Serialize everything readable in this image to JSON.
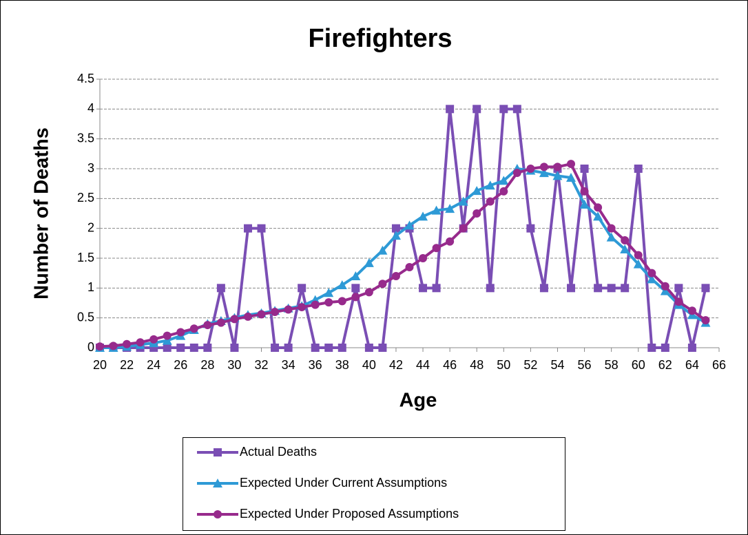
{
  "chart_data": {
    "type": "line",
    "title": "Firefighters",
    "x_label": "Age",
    "y_label": "Number of Deaths",
    "x": [
      20,
      21,
      22,
      23,
      24,
      25,
      26,
      27,
      28,
      29,
      30,
      31,
      32,
      33,
      34,
      35,
      36,
      37,
      38,
      39,
      40,
      41,
      42,
      43,
      44,
      45,
      46,
      47,
      48,
      49,
      50,
      51,
      52,
      53,
      54,
      55,
      56,
      57,
      58,
      59,
      60,
      61,
      62,
      63,
      64,
      65
    ],
    "series": [
      {
        "name": "Actual Deaths",
        "color": "#7a4eb4",
        "marker": "square",
        "values": [
          0,
          0,
          0,
          0,
          0,
          0,
          0,
          0,
          0,
          1,
          0,
          2,
          2,
          0,
          0,
          1,
          0,
          0,
          0,
          1,
          0,
          0,
          2,
          2,
          1,
          1,
          4,
          2,
          4,
          1,
          4,
          4,
          2,
          1,
          3,
          1,
          3,
          1,
          1,
          1,
          3,
          0,
          0,
          1,
          0,
          1
        ]
      },
      {
        "name": "Expected Under Current Assumptions",
        "color": "#2e9ad6",
        "marker": "triangle",
        "values": [
          0,
          0,
          0.02,
          0.05,
          0.08,
          0.12,
          0.2,
          0.3,
          0.4,
          0.45,
          0.5,
          0.55,
          0.58,
          0.62,
          0.66,
          0.7,
          0.8,
          0.92,
          1.05,
          1.2,
          1.42,
          1.63,
          1.88,
          2.05,
          2.2,
          2.3,
          2.33,
          2.45,
          2.63,
          2.72,
          2.8,
          3.0,
          2.97,
          2.93,
          2.88,
          2.85,
          2.4,
          2.2,
          1.85,
          1.65,
          1.4,
          1.15,
          0.95,
          0.72,
          0.55,
          0.42
        ]
      },
      {
        "name": "Expected Under Proposed Assumptions",
        "color": "#972a8c",
        "marker": "circle",
        "values": [
          0.02,
          0.03,
          0.06,
          0.09,
          0.14,
          0.2,
          0.26,
          0.32,
          0.38,
          0.42,
          0.48,
          0.52,
          0.56,
          0.6,
          0.64,
          0.68,
          0.72,
          0.76,
          0.78,
          0.85,
          0.93,
          1.07,
          1.2,
          1.35,
          1.5,
          1.67,
          1.78,
          2.0,
          2.25,
          2.45,
          2.62,
          2.93,
          3.0,
          3.03,
          3.03,
          3.08,
          2.62,
          2.35,
          2.0,
          1.8,
          1.55,
          1.25,
          1.03,
          0.77,
          0.62,
          0.46
        ]
      }
    ],
    "xlim": [
      20,
      66
    ],
    "xticks": [
      20,
      22,
      24,
      26,
      28,
      30,
      32,
      34,
      36,
      38,
      40,
      42,
      44,
      46,
      48,
      50,
      52,
      54,
      56,
      58,
      60,
      62,
      64,
      66
    ],
    "ylim": [
      0,
      4.5
    ],
    "yticks": [
      0,
      0.5,
      1,
      1.5,
      2,
      2.5,
      3,
      3.5,
      4,
      4.5
    ],
    "grid": true,
    "legend": "bottom"
  }
}
